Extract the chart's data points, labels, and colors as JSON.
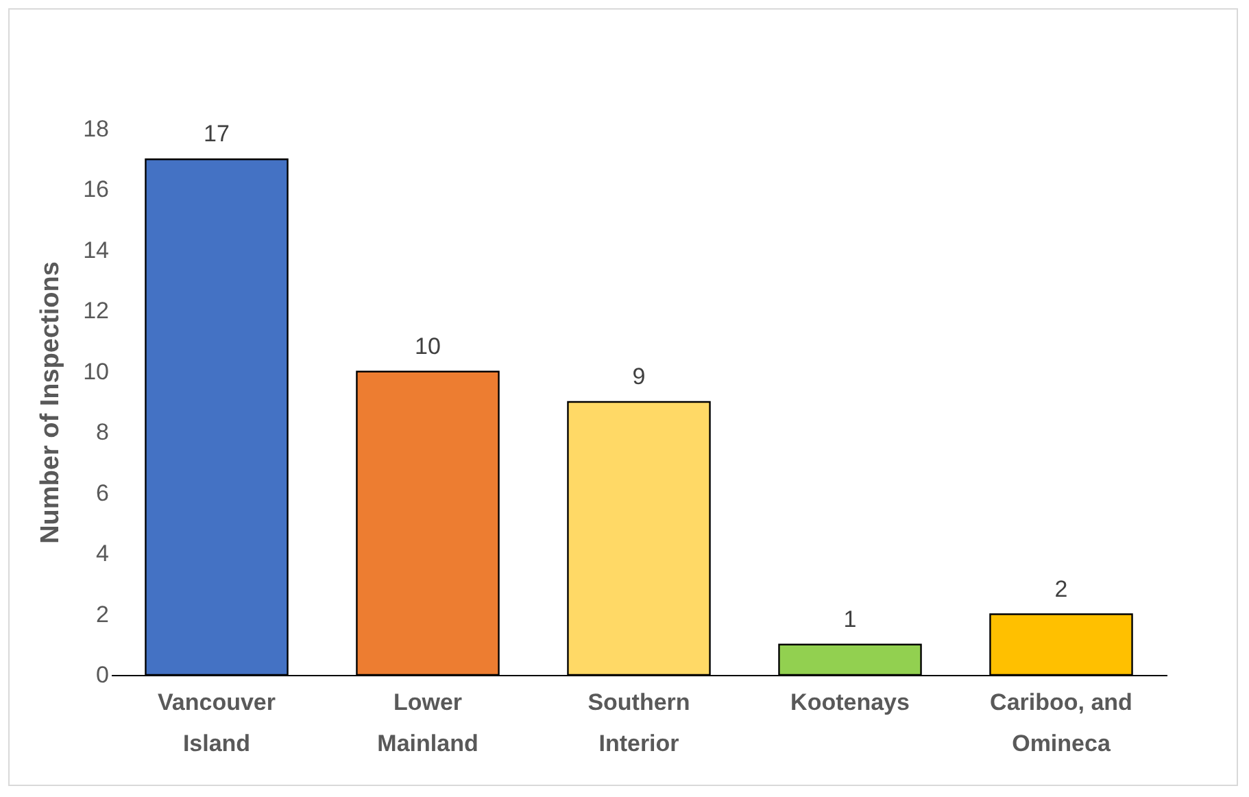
{
  "chart_data": {
    "type": "bar",
    "ylabel": "Number of Inspections",
    "categories": [
      "Vancouver Island",
      "Lower Mainland",
      "Southern Interior",
      "Kootenays",
      "Cariboo, and Omineca"
    ],
    "values": [
      17,
      10,
      9,
      1,
      2
    ],
    "colors": [
      "#4472c4",
      "#ed7d31",
      "#ffd966",
      "#92d050",
      "#ffc000"
    ],
    "ylim": [
      0,
      18
    ],
    "yticks": [
      0,
      2,
      4,
      6,
      8,
      10,
      12,
      14,
      16,
      18
    ],
    "data_labels": true,
    "grid": false
  }
}
